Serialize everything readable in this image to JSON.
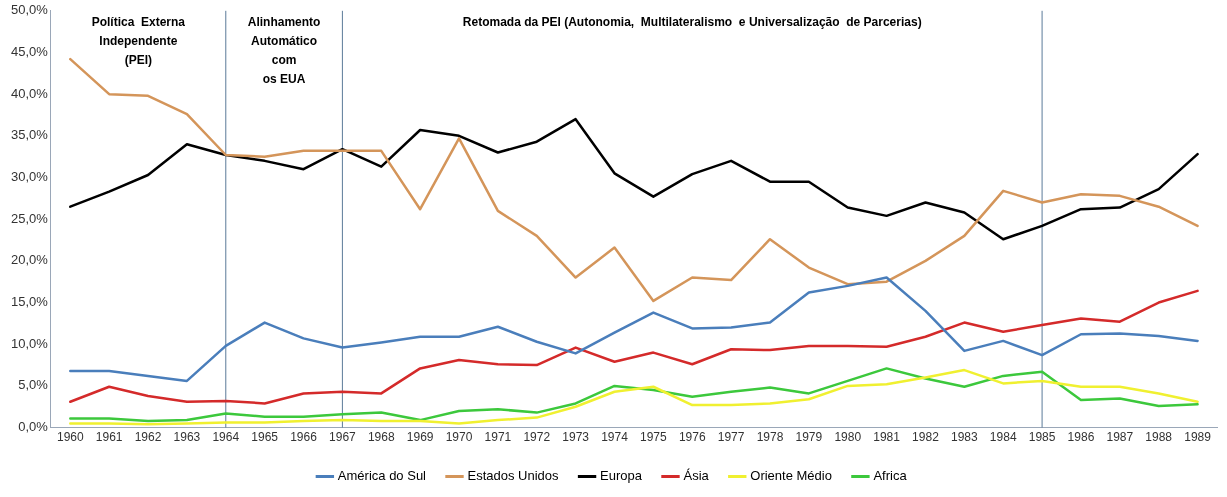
{
  "chart_data": {
    "type": "line",
    "x": [
      1960,
      1961,
      1962,
      1963,
      1964,
      1965,
      1966,
      1967,
      1968,
      1969,
      1970,
      1971,
      1972,
      1973,
      1974,
      1975,
      1976,
      1977,
      1978,
      1979,
      1980,
      1981,
      1982,
      1983,
      1984,
      1985,
      1986,
      1987,
      1988,
      1989
    ],
    "xlim": [
      1959.5,
      1989.5
    ],
    "xticks": [
      1960,
      1961,
      1962,
      1963,
      1964,
      1965,
      1966,
      1967,
      1968,
      1969,
      1970,
      1971,
      1972,
      1973,
      1974,
      1975,
      1976,
      1977,
      1978,
      1979,
      1980,
      1981,
      1982,
      1983,
      1984,
      1985,
      1986,
      1987,
      1988,
      1989
    ],
    "ylim": [
      0,
      50
    ],
    "yticks": [
      {
        "value": 0,
        "label": "0,0%"
      },
      {
        "value": 5,
        "label": "5,0%"
      },
      {
        "value": 10,
        "label": "10,0%"
      },
      {
        "value": 15,
        "label": "15,0%"
      },
      {
        "value": 20,
        "label": "20,0%"
      },
      {
        "value": 25,
        "label": "25,0%"
      },
      {
        "value": 30,
        "label": "30,0%"
      },
      {
        "value": 35,
        "label": "35,0%"
      },
      {
        "value": 40,
        "label": "40,0%"
      },
      {
        "value": 45,
        "label": "45,0%"
      },
      {
        "value": 50,
        "label": "50,0%"
      }
    ],
    "grid": false,
    "legend": "bottom",
    "marker": "none",
    "line_style": "solid",
    "series": [
      {
        "name": "América do Sul",
        "color": "#4a7ebb",
        "values": [
          6.8,
          6.8,
          6.2,
          5.6,
          9.8,
          12.6,
          10.7,
          9.6,
          10.2,
          10.9,
          10.9,
          12.1,
          10.3,
          8.9,
          11.4,
          13.8,
          11.9,
          12,
          12.6,
          16.2,
          17,
          18,
          14,
          9.2,
          10.4,
          8.7,
          11.2,
          11.3,
          11,
          10.4
        ]
      },
      {
        "name": "Estados Unidos",
        "color": "#d4955a",
        "values": [
          44.2,
          40,
          39.8,
          37.6,
          32.7,
          32.5,
          33.2,
          33.2,
          33.2,
          26.2,
          34.7,
          26,
          23,
          18,
          21.6,
          15.2,
          18,
          17.7,
          22.6,
          19.2,
          17.2,
          17.5,
          20,
          23,
          28.4,
          27,
          28,
          27.8,
          26.5,
          24.2
        ]
      },
      {
        "name": "Europa",
        "color": "#000000",
        "values": [
          26.5,
          28.3,
          30.3,
          34,
          32.7,
          32,
          31,
          33.4,
          31.3,
          35.7,
          35,
          33,
          34.3,
          37,
          30.5,
          27.7,
          30.4,
          32,
          29.5,
          29.5,
          26.4,
          25.4,
          27,
          25.8,
          22.6,
          24.2,
          26.2,
          26.4,
          28.6,
          32.8
        ]
      },
      {
        "name": "Ásia",
        "color": "#d42a2a",
        "values": [
          3.1,
          4.9,
          3.8,
          3.1,
          3.2,
          2.9,
          4.1,
          4.3,
          4.1,
          7.1,
          8.1,
          7.6,
          7.5,
          9.6,
          7.9,
          9,
          7.6,
          9.4,
          9.3,
          9.8,
          9.8,
          9.7,
          10.9,
          12.6,
          11.5,
          12.3,
          13.1,
          12.7,
          15,
          16.4
        ]
      },
      {
        "name": "Oriente Médio",
        "color": "#f0f030",
        "values": [
          0.5,
          0.5,
          0.4,
          0.5,
          0.6,
          0.6,
          0.8,
          0.9,
          0.8,
          0.8,
          0.5,
          0.9,
          1.2,
          2.5,
          4.3,
          4.9,
          2.7,
          2.7,
          2.9,
          3.4,
          5,
          5.2,
          6,
          6.9,
          5.3,
          5.6,
          4.9,
          4.9,
          4.1,
          3.1
        ]
      },
      {
        "name": "Africa",
        "color": "#3cc83c",
        "values": [
          1.1,
          1.1,
          0.8,
          0.9,
          1.7,
          1.3,
          1.3,
          1.6,
          1.8,
          0.9,
          2,
          2.2,
          1.8,
          2.9,
          5,
          4.5,
          3.7,
          4.3,
          4.8,
          4.1,
          5.6,
          7.1,
          5.9,
          4.9,
          6.2,
          6.7,
          3.3,
          3.5,
          2.6,
          2.8
        ]
      }
    ],
    "ref_lines": [
      {
        "axis": "x",
        "value": 1964,
        "color": "#5b7a99"
      },
      {
        "axis": "x",
        "value": 1967,
        "color": "#5b7a99"
      },
      {
        "axis": "x",
        "value": 1985,
        "color": "#5b7a99"
      }
    ],
    "annotations": [
      "Política  Externa\nIndependente\n(PEI)",
      "Alinhamento\nAutomático\ncom\nos EUA",
      "Retomada da PEI (Autonomia,  Multilateralismo  e Universalização  de Parcerias)"
    ]
  }
}
